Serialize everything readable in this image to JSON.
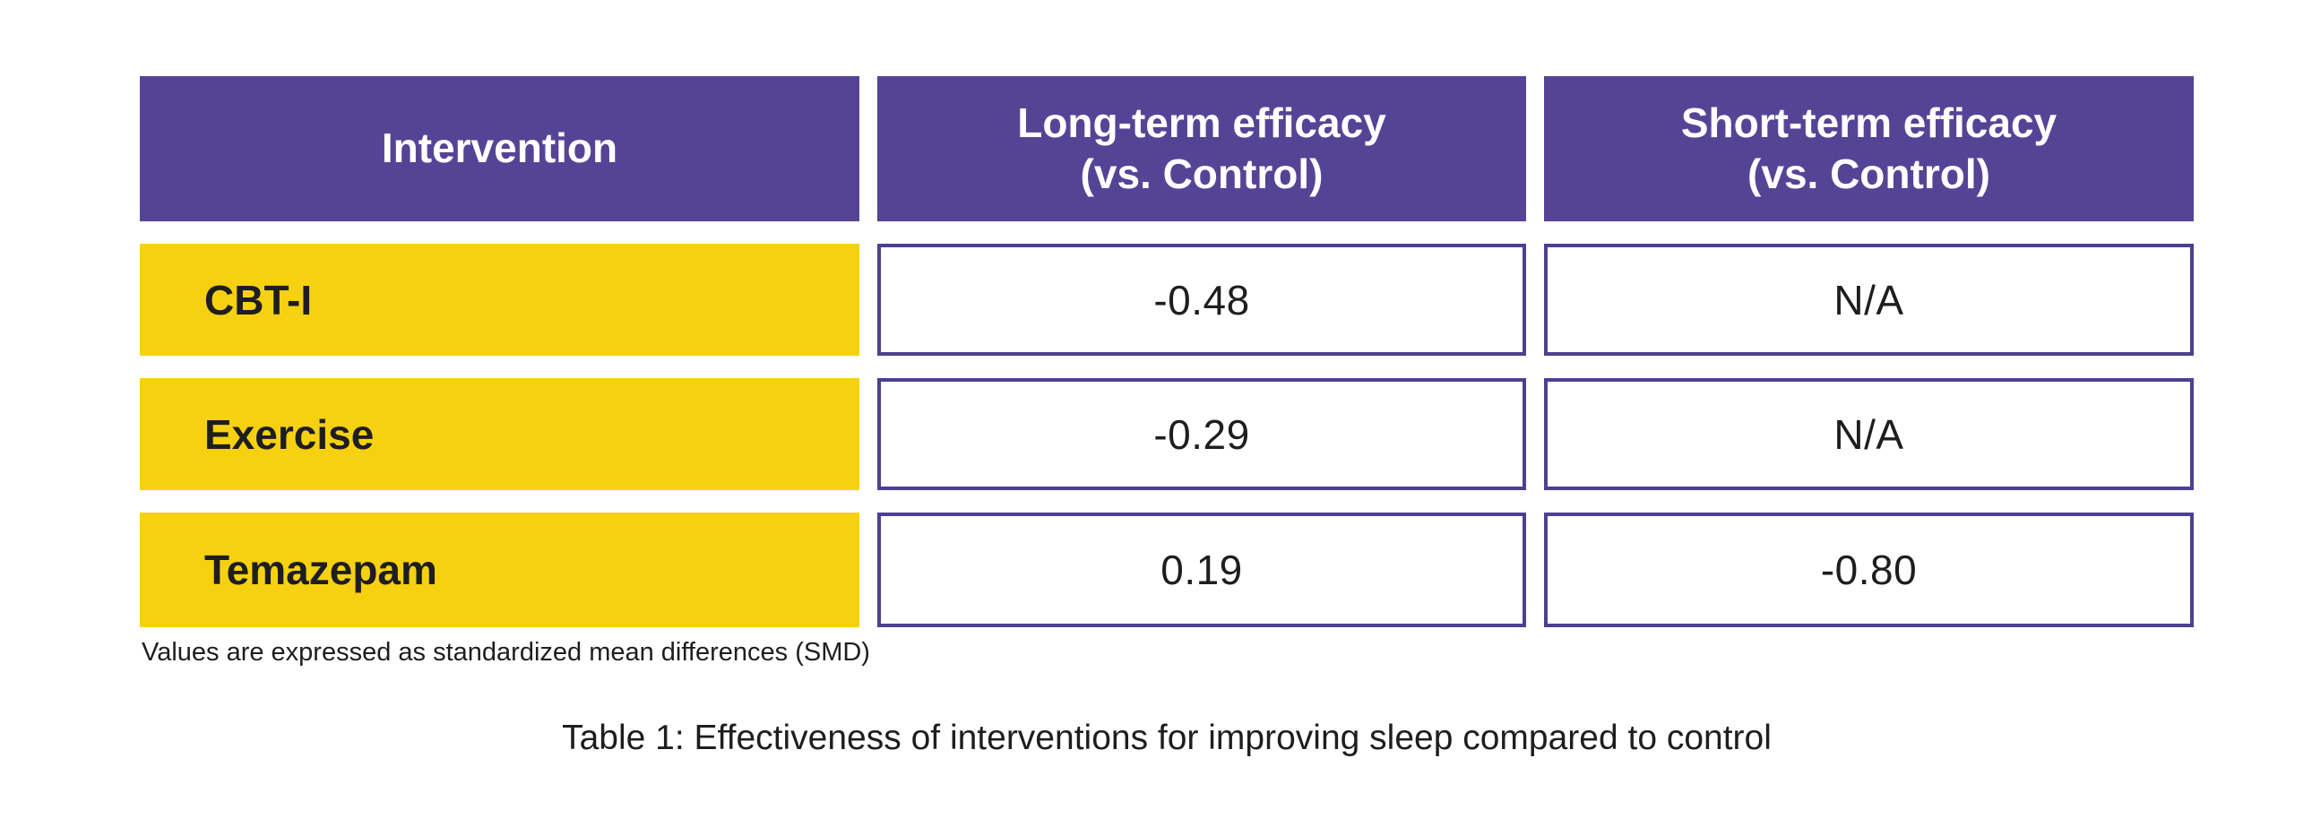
{
  "figure": {
    "caption": "Table 1: Effectiveness of interventions for improving sleep compared to control",
    "footnote": "Values are expressed as standardized mean differences (SMD)"
  },
  "table": {
    "headers": {
      "intervention": "Intervention",
      "long_term": "Long-term efficacy\n(vs. Control)",
      "short_term": "Short-term efficacy\n(vs. Control)"
    },
    "rows": [
      {
        "intervention": "CBT-I",
        "long_term": "-0.48",
        "short_term": "N/A"
      },
      {
        "intervention": "Exercise",
        "long_term": "-0.29",
        "short_term": "N/A"
      },
      {
        "intervention": "Temazepam",
        "long_term": "0.19",
        "short_term": "-0.80"
      }
    ]
  },
  "colors": {
    "page_bg": "#ffffff",
    "header_bg": "#554496",
    "header_text": "#ffffff",
    "label_bg": "#f6d111",
    "cell_bg": "#ffffff",
    "cell_border": "#4c4190",
    "body_text": "#1e1e21"
  },
  "chart_data": {
    "type": "table",
    "title": "Table 1: Effectiveness of interventions for improving sleep compared to control",
    "columns": [
      "Intervention",
      "Long-term efficacy (vs. Control)",
      "Short-term efficacy (vs. Control)"
    ],
    "rows": [
      [
        "CBT-I",
        "-0.48",
        "N/A"
      ],
      [
        "Exercise",
        "-0.29",
        "N/A"
      ],
      [
        "Temazepam",
        "0.19",
        "-0.80"
      ]
    ],
    "units": "standardized mean difference (SMD) vs. control",
    "footnote": "Values are expressed as standardized mean differences (SMD)",
    "layout": {
      "header_fill": "#554496",
      "row_label_fill": "#f6d111",
      "value_cell_border": "#4c4190"
    }
  }
}
